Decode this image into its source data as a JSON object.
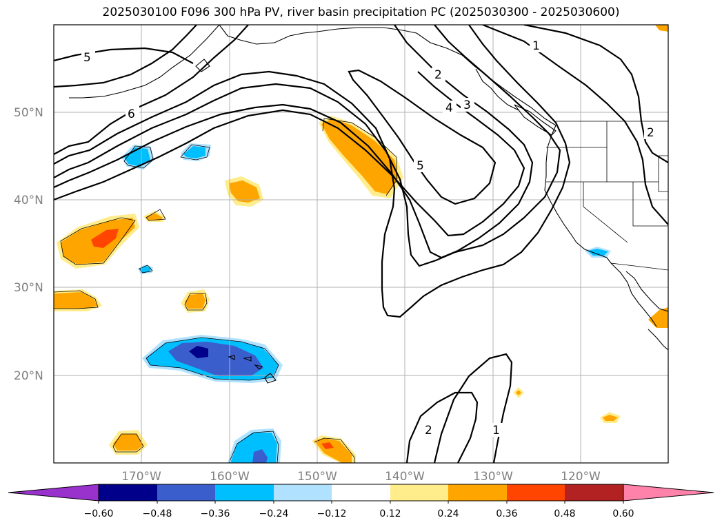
{
  "title": "2025030100 F096 300 hPa PV, river basin precipitation PC (2025030300 - 2025030600)",
  "map": {
    "projection": "PlateCarree",
    "lon_range": [
      -180,
      -110
    ],
    "lat_range": [
      10,
      60
    ],
    "gridlines": true,
    "lat_ticks": [
      {
        "value": 50,
        "label": "50°N"
      },
      {
        "value": 40,
        "label": "40°N"
      },
      {
        "value": 30,
        "label": "30°N"
      },
      {
        "value": 20,
        "label": "20°N"
      }
    ],
    "lon_ticks": [
      {
        "value": -170,
        "label": "170°W"
      },
      {
        "value": -160,
        "label": "160°W"
      },
      {
        "value": -150,
        "label": "150°W"
      },
      {
        "value": -140,
        "label": "140°W"
      },
      {
        "value": -130,
        "label": "130°W"
      },
      {
        "value": -120,
        "label": "120°W"
      }
    ],
    "pv_contour_labels": [
      "5",
      "6",
      "2",
      "3",
      "4",
      "5",
      "1",
      "2",
      "2",
      "1"
    ]
  },
  "colorbar": {
    "levels": [
      -0.6,
      -0.48,
      -0.36,
      -0.24,
      -0.12,
      0.12,
      0.24,
      0.36,
      0.48,
      0.6
    ],
    "tick_labels": [
      "−0.60",
      "−0.48",
      "−0.36",
      "−0.24",
      "−0.12",
      "0.12",
      "0.24",
      "0.36",
      "0.48",
      "0.60"
    ],
    "colors": [
      "#9932cc",
      "#00008b",
      "#3a5fcd",
      "#00bfff",
      "#b0e2ff",
      "#ffffff",
      "#ffec8b",
      "#ffa500",
      "#ff4500",
      "#b22222",
      "#ff82ab"
    ],
    "extend": "both"
  }
}
